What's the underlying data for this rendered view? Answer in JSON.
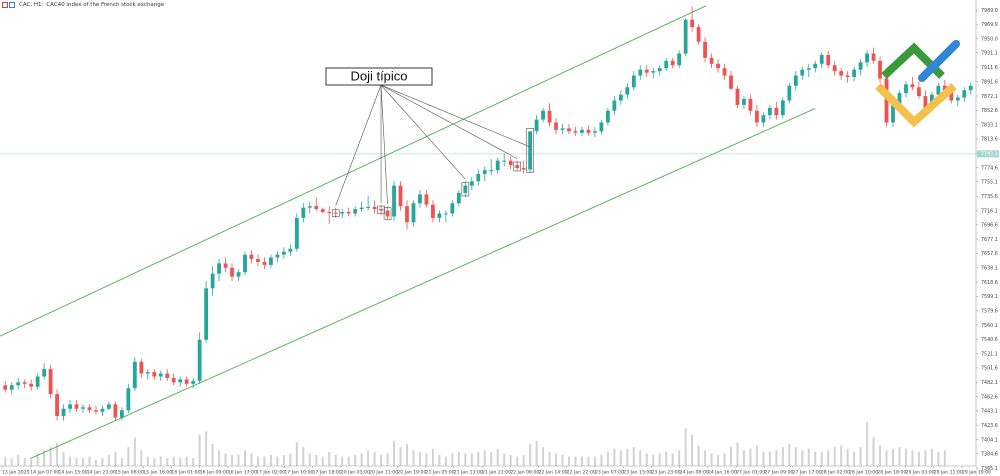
{
  "header": {
    "symbol": "CAC, H1:",
    "description": "CAC40 index of the French stock exchange"
  },
  "annotation": {
    "label": "Doji típico"
  },
  "colors": {
    "bull": "#26a69a",
    "bear": "#ef5350",
    "channel": "#4caf50",
    "volume": "#d2d2d2",
    "price_line": "#b2dfdb",
    "logo_green": "#3a9a3a",
    "logo_blue": "#2f86d6",
    "logo_yellow": "#f2c14e",
    "background": "#ffffff"
  },
  "logo": {
    "icon": "litefinance-logo-icon"
  },
  "chart_data": {
    "type": "candlestick",
    "ylim": [
      7368.0,
      7992.0
    ],
    "y_ticks": [
      "7989.0",
      "7969.9",
      "7950.0",
      "7931.1",
      "7911.6",
      "7891.6",
      "7872.1",
      "7852.6",
      "7833.1",
      "7813.6",
      "7794.1",
      "7774.6",
      "7755.1",
      "7735.6",
      "7716.1",
      "7696.6",
      "7677.1",
      "7657.6",
      "7638.1",
      "7618.6",
      "7599.1",
      "7579.6",
      "7560.1",
      "7540.6",
      "7521.1",
      "7501.6",
      "7482.1",
      "7462.6",
      "7443.1",
      "7423.6",
      "7404.1",
      "7384.6",
      "7365.1"
    ],
    "current_price": "7793.3",
    "x_ticks": [
      "13 Jan 2025",
      "14 Jan 07:00",
      "14 Jan 15:00",
      "14 Jan 23:00",
      "15 Jan 08:00",
      "15 Jan 16:00",
      "16 Jan 01:00",
      "16 Jan 09:00",
      "16 Jan 17:00",
      "17 Jan 02:00",
      "17 Jan 10:00",
      "17 Jan 18:00",
      "20 Jan 03:00",
      "20 Jan 11:00",
      "20 Jan 19:00",
      "21 Jan 05:00",
      "21 Jan 13:00",
      "21 Jan 21:00",
      "22 Jan 06:00",
      "22 Jan 14:00",
      "22 Jan 22:00",
      "23 Jan 07:00",
      "23 Jan 15:00",
      "23 Jan 23:00",
      "24 Jan 08:00",
      "24 Jan 16:00",
      "27 Jan 01:00",
      "27 Jan 09:00",
      "27 Jan 17:00",
      "28 Jan 02:00",
      "28 Jan 10:00",
      "28 Jan 18:00",
      "29 Jan 03:00",
      "29 Jan 11:00",
      "29 Jan 19:00"
    ],
    "series": [
      {
        "values": [
          [
            7478,
            7484,
            7468,
            7472
          ],
          [
            7472,
            7482,
            7466,
            7478
          ],
          [
            7478,
            7488,
            7472,
            7482
          ],
          [
            7482,
            7486,
            7474,
            7480
          ],
          [
            7480,
            7486,
            7470,
            7476
          ],
          [
            7476,
            7494,
            7472,
            7490
          ],
          [
            7490,
            7508,
            7486,
            7500
          ],
          [
            7500,
            7506,
            7460,
            7466
          ],
          [
            7466,
            7472,
            7430,
            7436
          ],
          [
            7436,
            7452,
            7430,
            7446
          ],
          [
            7446,
            7458,
            7440,
            7452
          ],
          [
            7452,
            7458,
            7442,
            7446
          ],
          [
            7446,
            7452,
            7440,
            7448
          ],
          [
            7448,
            7452,
            7440,
            7444
          ],
          [
            7444,
            7450,
            7438,
            7442
          ],
          [
            7442,
            7450,
            7436,
            7446
          ],
          [
            7446,
            7456,
            7444,
            7452
          ],
          [
            7452,
            7456,
            7430,
            7434
          ],
          [
            7434,
            7448,
            7430,
            7444
          ],
          [
            7444,
            7480,
            7440,
            7474
          ],
          [
            7474,
            7516,
            7470,
            7510
          ],
          [
            7510,
            7514,
            7488,
            7494
          ],
          [
            7494,
            7500,
            7486,
            7496
          ],
          [
            7496,
            7500,
            7486,
            7490
          ],
          [
            7490,
            7498,
            7484,
            7494
          ],
          [
            7494,
            7500,
            7484,
            7488
          ],
          [
            7488,
            7494,
            7478,
            7482
          ],
          [
            7482,
            7490,
            7476,
            7486
          ],
          [
            7486,
            7490,
            7476,
            7480
          ],
          [
            7480,
            7488,
            7474,
            7484
          ],
          [
            7484,
            7550,
            7480,
            7540
          ],
          [
            7540,
            7620,
            7536,
            7610
          ],
          [
            7610,
            7640,
            7600,
            7630
          ],
          [
            7630,
            7650,
            7620,
            7644
          ],
          [
            7644,
            7652,
            7632,
            7638
          ],
          [
            7638,
            7644,
            7620,
            7626
          ],
          [
            7626,
            7636,
            7620,
            7632
          ],
          [
            7632,
            7660,
            7628,
            7656
          ],
          [
            7656,
            7662,
            7644,
            7650
          ],
          [
            7650,
            7656,
            7640,
            7646
          ],
          [
            7646,
            7652,
            7636,
            7642
          ],
          [
            7642,
            7656,
            7638,
            7652
          ],
          [
            7652,
            7660,
            7646,
            7656
          ],
          [
            7656,
            7666,
            7650,
            7660
          ],
          [
            7660,
            7670,
            7654,
            7664
          ],
          [
            7664,
            7712,
            7660,
            7706
          ],
          [
            7706,
            7726,
            7700,
            7720
          ],
          [
            7720,
            7728,
            7712,
            7722
          ],
          [
            7722,
            7734,
            7716,
            7718
          ],
          [
            7718,
            7720,
            7712,
            7714
          ],
          [
            7714,
            7722,
            7698,
            7713
          ],
          [
            7713,
            7720,
            7706,
            7712
          ],
          [
            7712,
            7718,
            7706,
            7714
          ],
          [
            7714,
            7720,
            7708,
            7712
          ],
          [
            7712,
            7722,
            7708,
            7718
          ],
          [
            7718,
            7728,
            7714,
            7720
          ],
          [
            7720,
            7736,
            7716,
            7721
          ],
          [
            7721,
            7730,
            7712,
            7718
          ],
          [
            7718,
            7724,
            7710,
            7716
          ],
          [
            7716,
            7722,
            7704,
            7708
          ],
          [
            7708,
            7756,
            7702,
            7750
          ],
          [
            7750,
            7756,
            7716,
            7722
          ],
          [
            7722,
            7730,
            7690,
            7700
          ],
          [
            7700,
            7730,
            7694,
            7726
          ],
          [
            7726,
            7744,
            7720,
            7738
          ],
          [
            7738,
            7744,
            7720,
            7724
          ],
          [
            7724,
            7730,
            7700,
            7706
          ],
          [
            7706,
            7716,
            7700,
            7712
          ],
          [
            7712,
            7716,
            7700,
            7712
          ],
          [
            7712,
            7730,
            7708,
            7726
          ],
          [
            7726,
            7744,
            7722,
            7740
          ],
          [
            7740,
            7756,
            7734,
            7750
          ],
          [
            7750,
            7762,
            7744,
            7756
          ],
          [
            7756,
            7772,
            7750,
            7766
          ],
          [
            7766,
            7776,
            7756,
            7771
          ],
          [
            7771,
            7786,
            7764,
            7771
          ],
          [
            7771,
            7788,
            7766,
            7784
          ],
          [
            7784,
            7794,
            7776,
            7784
          ],
          [
            7784,
            7790,
            7772,
            7778
          ],
          [
            7778,
            7784,
            7770,
            7774
          ],
          [
            7774,
            7784,
            7766,
            7772
          ],
          [
            7772,
            7800,
            7768,
            7824
          ],
          [
            7824,
            7846,
            7820,
            7840
          ],
          [
            7840,
            7856,
            7836,
            7852
          ],
          [
            7852,
            7862,
            7830,
            7836
          ],
          [
            7836,
            7842,
            7820,
            7826
          ],
          [
            7826,
            7834,
            7820,
            7828
          ],
          [
            7828,
            7834,
            7820,
            7824
          ],
          [
            7824,
            7830,
            7818,
            7822
          ],
          [
            7822,
            7830,
            7818,
            7826
          ],
          [
            7826,
            7832,
            7818,
            7822
          ],
          [
            7822,
            7830,
            7816,
            7824
          ],
          [
            7824,
            7840,
            7820,
            7836
          ],
          [
            7836,
            7856,
            7832,
            7852
          ],
          [
            7852,
            7872,
            7846,
            7866
          ],
          [
            7866,
            7880,
            7860,
            7874
          ],
          [
            7874,
            7890,
            7868,
            7884
          ],
          [
            7884,
            7906,
            7880,
            7900
          ],
          [
            7900,
            7914,
            7894,
            7908
          ],
          [
            7908,
            7914,
            7898,
            7904
          ],
          [
            7904,
            7910,
            7896,
            7906
          ],
          [
            7906,
            7914,
            7900,
            7910
          ],
          [
            7910,
            7924,
            7906,
            7920
          ],
          [
            7920,
            7924,
            7910,
            7914
          ],
          [
            7914,
            7934,
            7910,
            7930
          ],
          [
            7930,
            7978,
            7926,
            7976
          ],
          [
            7976,
            7994,
            7960,
            7966
          ],
          [
            7966,
            7970,
            7942,
            7946
          ],
          [
            7946,
            7952,
            7918,
            7924
          ],
          [
            7924,
            7930,
            7910,
            7916
          ],
          [
            7916,
            7922,
            7904,
            7910
          ],
          [
            7910,
            7916,
            7894,
            7900
          ],
          [
            7900,
            7906,
            7880,
            7882
          ],
          [
            7882,
            7886,
            7856,
            7860
          ],
          [
            7860,
            7872,
            7854,
            7868
          ],
          [
            7868,
            7874,
            7846,
            7852
          ],
          [
            7852,
            7860,
            7830,
            7836
          ],
          [
            7836,
            7850,
            7830,
            7846
          ],
          [
            7846,
            7860,
            7840,
            7856
          ],
          [
            7856,
            7864,
            7840,
            7846
          ],
          [
            7846,
            7870,
            7842,
            7866
          ],
          [
            7866,
            7890,
            7862,
            7886
          ],
          [
            7886,
            7906,
            7880,
            7900
          ],
          [
            7900,
            7912,
            7894,
            7908
          ],
          [
            7908,
            7916,
            7898,
            7910
          ],
          [
            7910,
            7920,
            7904,
            7916
          ],
          [
            7916,
            7932,
            7910,
            7928
          ],
          [
            7928,
            7934,
            7910,
            7914
          ],
          [
            7914,
            7920,
            7900,
            7906
          ],
          [
            7906,
            7910,
            7894,
            7900
          ],
          [
            7900,
            7906,
            7890,
            7898
          ],
          [
            7898,
            7912,
            7892,
            7908
          ],
          [
            7908,
            7922,
            7900,
            7918
          ],
          [
            7918,
            7934,
            7912,
            7930
          ],
          [
            7930,
            7938,
            7916,
            7920
          ],
          [
            7920,
            7926,
            7890,
            7896
          ],
          [
            7896,
            7902,
            7830,
            7836
          ],
          [
            7836,
            7864,
            7830,
            7860
          ],
          [
            7860,
            7880,
            7854,
            7876
          ],
          [
            7876,
            7892,
            7870,
            7888
          ],
          [
            7888,
            7898,
            7880,
            7884
          ],
          [
            7884,
            7892,
            7868,
            7872
          ],
          [
            7872,
            7880,
            7850,
            7856
          ],
          [
            7856,
            7878,
            7852,
            7874
          ],
          [
            7874,
            7890,
            7868,
            7886
          ],
          [
            7886,
            7894,
            7874,
            7878
          ],
          [
            7878,
            7884,
            7862,
            7866
          ],
          [
            7866,
            7874,
            7858,
            7870
          ],
          [
            7870,
            7884,
            7864,
            7880
          ],
          [
            7880,
            7890,
            7874,
            7886
          ]
        ]
      }
    ],
    "volume": [
      6,
      5,
      7,
      5,
      4,
      8,
      10,
      12,
      15,
      9,
      6,
      5,
      5,
      6,
      4,
      5,
      7,
      9,
      5,
      12,
      18,
      10,
      6,
      5,
      6,
      5,
      6,
      5,
      6,
      5,
      20,
      22,
      14,
      10,
      8,
      7,
      7,
      10,
      8,
      6,
      6,
      7,
      6,
      7,
      8,
      15,
      12,
      8,
      7,
      6,
      9,
      7,
      6,
      6,
      7,
      8,
      10,
      9,
      7,
      8,
      16,
      12,
      14,
      10,
      9,
      8,
      11,
      7,
      6,
      8,
      9,
      8,
      8,
      9,
      10,
      9,
      11,
      8,
      7,
      6,
      7,
      14,
      16,
      12,
      9,
      8,
      7,
      6,
      6,
      6,
      6,
      6,
      7,
      9,
      11,
      10,
      11,
      12,
      10,
      8,
      7,
      8,
      9,
      8,
      10,
      24,
      20,
      13,
      10,
      8,
      7,
      8,
      12,
      15,
      10,
      11,
      13,
      9,
      9,
      10,
      12,
      14,
      12,
      10,
      11,
      9,
      9,
      10,
      12,
      13,
      11,
      9,
      12,
      28,
      18,
      13,
      10,
      11,
      12,
      11,
      10,
      9,
      10,
      11,
      9,
      10
    ],
    "channel_upper": {
      "from": [
        0,
        7545
      ],
      "to": [
        706,
        7995
      ]
    },
    "channel_lower": {
      "from": [
        30,
        7378
      ],
      "to": [
        815,
        7855
      ]
    },
    "annotation_targets": [
      51,
      58,
      59,
      71,
      79,
      81
    ]
  }
}
